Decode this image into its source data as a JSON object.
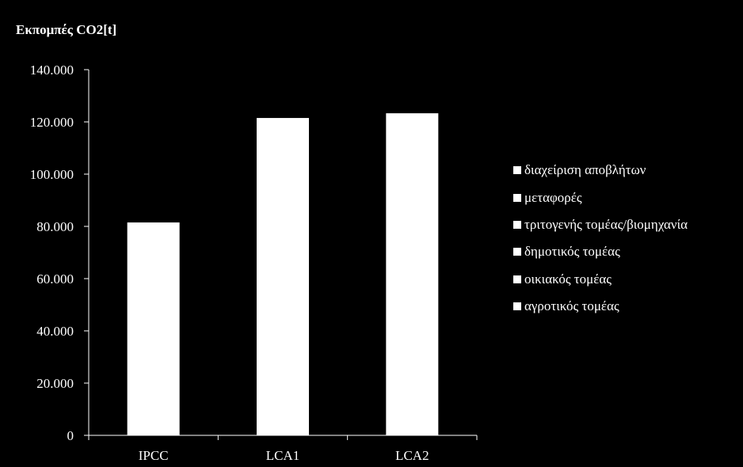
{
  "chart_data": {
    "type": "bar",
    "stacked": true,
    "ylabel": "Εκπομπές CO2[t]",
    "xlabel": "",
    "categories": [
      "IPCC",
      "LCA1",
      "LCA2"
    ],
    "totals": [
      81500,
      121500,
      123300
    ],
    "ylim": [
      0,
      140000
    ],
    "yticks": [
      "0",
      "20.000",
      "40.000",
      "60.000",
      "80.000",
      "100.000",
      "120.000",
      "140.000"
    ],
    "ytick_values": [
      0,
      20000,
      40000,
      60000,
      80000,
      100000,
      120000,
      140000
    ],
    "grid": false,
    "legend_position": "right",
    "series": [
      {
        "name": "διαχείριση αποβλήτων"
      },
      {
        "name": "μεταφορές"
      },
      {
        "name": "τριτογενής τομέας/βιομηχανία"
      },
      {
        "name": "δημοτικός τομέας"
      },
      {
        "name": "οικιακός τομέας"
      },
      {
        "name": "αγροτικός τομέας"
      }
    ],
    "colors": {
      "background": "#000000",
      "bars": "#ffffff",
      "axis": "#ffffff",
      "text": "#ffffff"
    }
  }
}
